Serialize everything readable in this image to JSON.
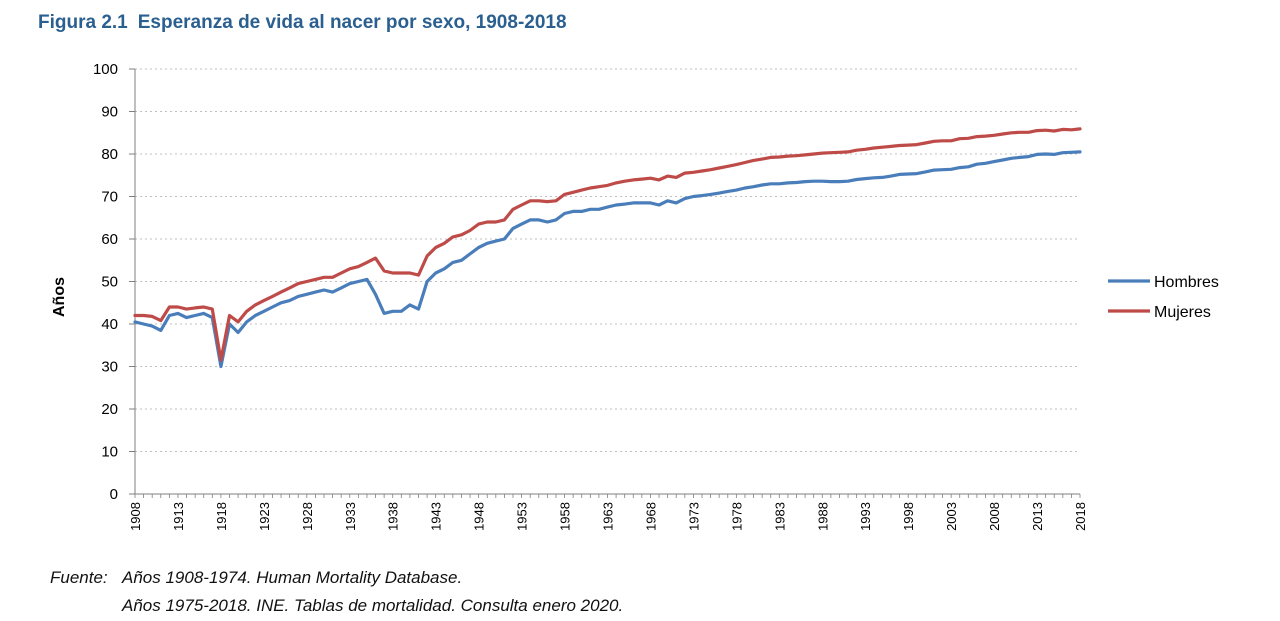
{
  "figure": {
    "number": "Figura 2.1",
    "title": "Esperanza de vida al nacer por sexo, 1908-2018"
  },
  "source": {
    "label": "Fuente:",
    "line1": "Años 1908-1974. Human Mortality Database.",
    "line2": "Años 1975-2018. INE. Tablas de mortalidad. Consulta enero 2020."
  },
  "chart_data": {
    "type": "line",
    "ylabel": "Años",
    "xlabel": "",
    "ylim": [
      0,
      100
    ],
    "xlim": [
      1908,
      2018
    ],
    "yticks": [
      0,
      10,
      20,
      30,
      40,
      50,
      60,
      70,
      80,
      90,
      100
    ],
    "xticks": [
      1908,
      1913,
      1918,
      1923,
      1928,
      1933,
      1938,
      1943,
      1948,
      1953,
      1958,
      1963,
      1968,
      1973,
      1978,
      1983,
      1988,
      1993,
      1998,
      2003,
      2008,
      2013,
      2018
    ],
    "grid": "horizontal dotted",
    "legend_position": "right",
    "series": [
      {
        "name": "Hombres",
        "color": "#4a7ebb",
        "points": [
          [
            1908,
            40.5
          ],
          [
            1909,
            40.0
          ],
          [
            1910,
            39.5
          ],
          [
            1911,
            38.5
          ],
          [
            1912,
            42.0
          ],
          [
            1913,
            42.5
          ],
          [
            1914,
            41.5
          ],
          [
            1915,
            42.0
          ],
          [
            1916,
            42.5
          ],
          [
            1917,
            41.5
          ],
          [
            1918,
            30.0
          ],
          [
            1919,
            40.0
          ],
          [
            1920,
            38.0
          ],
          [
            1921,
            40.5
          ],
          [
            1922,
            42.0
          ],
          [
            1923,
            43.0
          ],
          [
            1924,
            44.0
          ],
          [
            1925,
            45.0
          ],
          [
            1926,
            45.5
          ],
          [
            1927,
            46.5
          ],
          [
            1928,
            47.0
          ],
          [
            1929,
            47.5
          ],
          [
            1930,
            48.0
          ],
          [
            1931,
            47.5
          ],
          [
            1932,
            48.5
          ],
          [
            1933,
            49.5
          ],
          [
            1934,
            50.0
          ],
          [
            1935,
            50.5
          ],
          [
            1936,
            47.0
          ],
          [
            1937,
            42.5
          ],
          [
            1938,
            43.0
          ],
          [
            1939,
            43.0
          ],
          [
            1940,
            44.5
          ],
          [
            1941,
            43.5
          ],
          [
            1942,
            50.0
          ],
          [
            1943,
            52.0
          ],
          [
            1944,
            53.0
          ],
          [
            1945,
            54.5
          ],
          [
            1946,
            55.0
          ],
          [
            1947,
            56.5
          ],
          [
            1948,
            58.0
          ],
          [
            1949,
            59.0
          ],
          [
            1950,
            59.5
          ],
          [
            1951,
            60.0
          ],
          [
            1952,
            62.5
          ],
          [
            1953,
            63.5
          ],
          [
            1954,
            64.5
          ],
          [
            1955,
            64.5
          ],
          [
            1956,
            64.0
          ],
          [
            1957,
            64.5
          ],
          [
            1958,
            66.0
          ],
          [
            1959,
            66.5
          ],
          [
            1960,
            66.5
          ],
          [
            1961,
            67.0
          ],
          [
            1962,
            67.0
          ],
          [
            1963,
            67.5
          ],
          [
            1964,
            68.0
          ],
          [
            1965,
            68.2
          ],
          [
            1966,
            68.5
          ],
          [
            1967,
            68.5
          ],
          [
            1968,
            68.5
          ],
          [
            1969,
            68.0
          ],
          [
            1970,
            69.0
          ],
          [
            1971,
            68.5
          ],
          [
            1972,
            69.5
          ],
          [
            1973,
            70.0
          ],
          [
            1974,
            70.2
          ],
          [
            1975,
            70.5
          ],
          [
            1976,
            70.8
          ],
          [
            1977,
            71.2
          ],
          [
            1978,
            71.5
          ],
          [
            1979,
            72.0
          ],
          [
            1980,
            72.3
          ],
          [
            1981,
            72.7
          ],
          [
            1982,
            73.0
          ],
          [
            1983,
            73.0
          ],
          [
            1984,
            73.2
          ],
          [
            1985,
            73.3
          ],
          [
            1986,
            73.5
          ],
          [
            1987,
            73.6
          ],
          [
            1988,
            73.6
          ],
          [
            1989,
            73.5
          ],
          [
            1990,
            73.5
          ],
          [
            1991,
            73.6
          ],
          [
            1992,
            74.0
          ],
          [
            1993,
            74.2
          ],
          [
            1994,
            74.4
          ],
          [
            1995,
            74.5
          ],
          [
            1996,
            74.8
          ],
          [
            1997,
            75.2
          ],
          [
            1998,
            75.3
          ],
          [
            1999,
            75.4
          ],
          [
            2000,
            75.8
          ],
          [
            2001,
            76.2
          ],
          [
            2002,
            76.3
          ],
          [
            2003,
            76.4
          ],
          [
            2004,
            76.8
          ],
          [
            2005,
            77.0
          ],
          [
            2006,
            77.6
          ],
          [
            2007,
            77.8
          ],
          [
            2008,
            78.2
          ],
          [
            2009,
            78.6
          ],
          [
            2010,
            79.0
          ],
          [
            2011,
            79.2
          ],
          [
            2012,
            79.4
          ],
          [
            2013,
            79.9
          ],
          [
            2014,
            80.0
          ],
          [
            2015,
            79.9
          ],
          [
            2016,
            80.3
          ],
          [
            2017,
            80.4
          ],
          [
            2018,
            80.5
          ]
        ]
      },
      {
        "name": "Mujeres",
        "color": "#be4b48",
        "points": [
          [
            1908,
            42.0
          ],
          [
            1909,
            42.0
          ],
          [
            1910,
            41.8
          ],
          [
            1911,
            40.8
          ],
          [
            1912,
            44.0
          ],
          [
            1913,
            44.0
          ],
          [
            1914,
            43.5
          ],
          [
            1915,
            43.8
          ],
          [
            1916,
            44.0
          ],
          [
            1917,
            43.5
          ],
          [
            1918,
            31.5
          ],
          [
            1919,
            42.0
          ],
          [
            1920,
            40.5
          ],
          [
            1921,
            43.0
          ],
          [
            1922,
            44.5
          ],
          [
            1923,
            45.5
          ],
          [
            1924,
            46.5
          ],
          [
            1925,
            47.5
          ],
          [
            1926,
            48.5
          ],
          [
            1927,
            49.5
          ],
          [
            1928,
            50.0
          ],
          [
            1929,
            50.5
          ],
          [
            1930,
            51.0
          ],
          [
            1931,
            51.0
          ],
          [
            1932,
            52.0
          ],
          [
            1933,
            53.0
          ],
          [
            1934,
            53.5
          ],
          [
            1935,
            54.5
          ],
          [
            1936,
            55.5
          ],
          [
            1937,
            52.5
          ],
          [
            1938,
            52.0
          ],
          [
            1939,
            52.0
          ],
          [
            1940,
            52.0
          ],
          [
            1941,
            51.5
          ],
          [
            1942,
            56.0
          ],
          [
            1943,
            58.0
          ],
          [
            1944,
            59.0
          ],
          [
            1945,
            60.5
          ],
          [
            1946,
            61.0
          ],
          [
            1947,
            62.0
          ],
          [
            1948,
            63.5
          ],
          [
            1949,
            64.0
          ],
          [
            1950,
            64.0
          ],
          [
            1951,
            64.5
          ],
          [
            1952,
            67.0
          ],
          [
            1953,
            68.0
          ],
          [
            1954,
            69.0
          ],
          [
            1955,
            69.0
          ],
          [
            1956,
            68.8
          ],
          [
            1957,
            69.0
          ],
          [
            1958,
            70.5
          ],
          [
            1959,
            71.0
          ],
          [
            1960,
            71.5
          ],
          [
            1961,
            72.0
          ],
          [
            1962,
            72.3
          ],
          [
            1963,
            72.6
          ],
          [
            1964,
            73.2
          ],
          [
            1965,
            73.6
          ],
          [
            1966,
            73.9
          ],
          [
            1967,
            74.1
          ],
          [
            1968,
            74.3
          ],
          [
            1969,
            73.9
          ],
          [
            1970,
            74.8
          ],
          [
            1971,
            74.5
          ],
          [
            1972,
            75.5
          ],
          [
            1973,
            75.7
          ],
          [
            1974,
            76.0
          ],
          [
            1975,
            76.3
          ],
          [
            1976,
            76.7
          ],
          [
            1977,
            77.1
          ],
          [
            1978,
            77.5
          ],
          [
            1979,
            78.0
          ],
          [
            1980,
            78.5
          ],
          [
            1981,
            78.8
          ],
          [
            1982,
            79.2
          ],
          [
            1983,
            79.3
          ],
          [
            1984,
            79.5
          ],
          [
            1985,
            79.6
          ],
          [
            1986,
            79.8
          ],
          [
            1987,
            80.0
          ],
          [
            1988,
            80.2
          ],
          [
            1989,
            80.3
          ],
          [
            1990,
            80.4
          ],
          [
            1991,
            80.5
          ],
          [
            1992,
            80.9
          ],
          [
            1993,
            81.1
          ],
          [
            1994,
            81.4
          ],
          [
            1995,
            81.6
          ],
          [
            1996,
            81.8
          ],
          [
            1997,
            82.0
          ],
          [
            1998,
            82.1
          ],
          [
            1999,
            82.2
          ],
          [
            2000,
            82.6
          ],
          [
            2001,
            83.0
          ],
          [
            2002,
            83.1
          ],
          [
            2003,
            83.1
          ],
          [
            2004,
            83.6
          ],
          [
            2005,
            83.7
          ],
          [
            2006,
            84.1
          ],
          [
            2007,
            84.2
          ],
          [
            2008,
            84.4
          ],
          [
            2009,
            84.7
          ],
          [
            2010,
            85.0
          ],
          [
            2011,
            85.1
          ],
          [
            2012,
            85.1
          ],
          [
            2013,
            85.5
          ],
          [
            2014,
            85.6
          ],
          [
            2015,
            85.4
          ],
          [
            2016,
            85.8
          ],
          [
            2017,
            85.7
          ],
          [
            2018,
            85.9
          ]
        ]
      }
    ]
  }
}
